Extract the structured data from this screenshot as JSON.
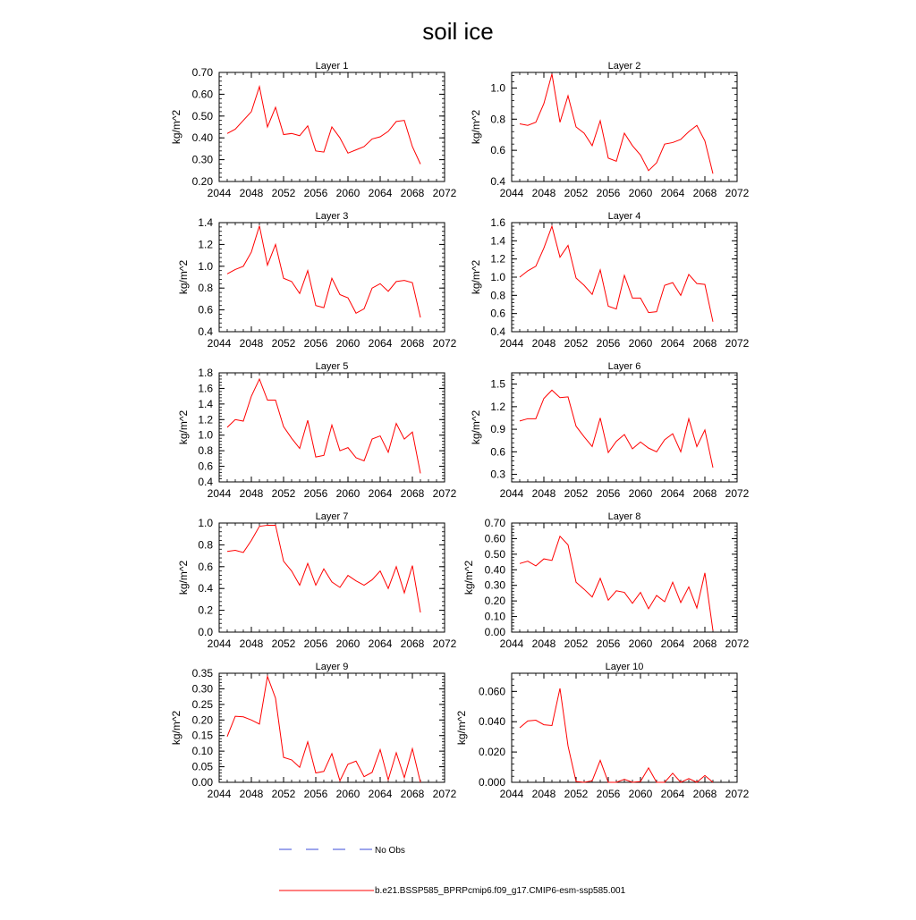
{
  "title": "soil ice",
  "ylabel": "kg/m^2",
  "x_ticks": [
    2044,
    2048,
    2052,
    2056,
    2060,
    2064,
    2068,
    2072
  ],
  "xlim": [
    2044,
    2072
  ],
  "years": [
    2045,
    2046,
    2047,
    2048,
    2049,
    2050,
    2051,
    2052,
    2053,
    2054,
    2055,
    2056,
    2057,
    2058,
    2059,
    2060,
    2061,
    2062,
    2063,
    2064,
    2065,
    2066,
    2067,
    2068,
    2069
  ],
  "legend": [
    {
      "label": "No Obs",
      "color": "#3b4bd8",
      "style": "dashed"
    },
    {
      "label": "b.e21.BSSP585_BPRPcmip6.f09_g17.CMIP6-esm-ssp585.001",
      "color": "#ff0000",
      "style": "solid"
    }
  ],
  "chart_data": [
    {
      "type": "line",
      "title": "Layer 1",
      "ylim": [
        0.2,
        0.7
      ],
      "yticks": [
        0.2,
        0.3,
        0.4,
        0.5,
        0.6,
        0.7
      ],
      "decimals": 2,
      "series": [
        {
          "name": "b.e21.BSSP585_BPRPcmip6.f09_g17.CMIP6-esm-ssp585.001",
          "color": "#ff0000",
          "values": [
            0.42,
            0.44,
            0.48,
            0.52,
            0.635,
            0.45,
            0.54,
            0.415,
            0.42,
            0.41,
            0.455,
            0.34,
            0.335,
            0.45,
            0.4,
            0.33,
            0.345,
            0.36,
            0.395,
            0.405,
            0.43,
            0.475,
            0.48,
            0.36,
            0.28
          ]
        }
      ]
    },
    {
      "type": "line",
      "title": "Layer 2",
      "ylim": [
        0.4,
        1.1
      ],
      "yticks": [
        0.4,
        0.6,
        0.8,
        1.0
      ],
      "decimals": 1,
      "series": [
        {
          "name": "b.e21.BSSP585_BPRPcmip6.f09_g17.CMIP6-esm-ssp585.001",
          "color": "#ff0000",
          "values": [
            0.77,
            0.76,
            0.78,
            0.9,
            1.09,
            0.78,
            0.95,
            0.75,
            0.71,
            0.63,
            0.79,
            0.55,
            0.53,
            0.71,
            0.63,
            0.57,
            0.47,
            0.52,
            0.64,
            0.65,
            0.67,
            0.72,
            0.76,
            0.66,
            0.45
          ]
        }
      ]
    },
    {
      "type": "line",
      "title": "Layer 3",
      "ylim": [
        0.4,
        1.4
      ],
      "yticks": [
        0.4,
        0.6,
        0.8,
        1.0,
        1.2,
        1.4
      ],
      "decimals": 1,
      "series": [
        {
          "name": "b.e21.BSSP585_BPRPcmip6.f09_g17.CMIP6-esm-ssp585.001",
          "color": "#ff0000",
          "values": [
            0.93,
            0.97,
            1.0,
            1.13,
            1.37,
            1.01,
            1.2,
            0.89,
            0.86,
            0.75,
            0.96,
            0.64,
            0.62,
            0.89,
            0.74,
            0.71,
            0.57,
            0.61,
            0.8,
            0.84,
            0.77,
            0.86,
            0.87,
            0.85,
            0.53
          ]
        }
      ]
    },
    {
      "type": "line",
      "title": "Layer 4",
      "ylim": [
        0.4,
        1.6
      ],
      "yticks": [
        0.4,
        0.6,
        0.8,
        1.0,
        1.2,
        1.4,
        1.6
      ],
      "decimals": 1,
      "series": [
        {
          "name": "b.e21.BSSP585_BPRPcmip6.f09_g17.CMIP6-esm-ssp585.001",
          "color": "#ff0000",
          "values": [
            1.0,
            1.07,
            1.12,
            1.32,
            1.56,
            1.22,
            1.35,
            0.99,
            0.91,
            0.81,
            1.08,
            0.68,
            0.65,
            1.02,
            0.77,
            0.77,
            0.61,
            0.62,
            0.91,
            0.94,
            0.8,
            1.03,
            0.93,
            0.92,
            0.51
          ]
        }
      ]
    },
    {
      "type": "line",
      "title": "Layer 5",
      "ylim": [
        0.4,
        1.8
      ],
      "yticks": [
        0.4,
        0.6,
        0.8,
        1.0,
        1.2,
        1.4,
        1.6,
        1.8
      ],
      "decimals": 1,
      "series": [
        {
          "name": "b.e21.BSSP585_BPRPcmip6.f09_g17.CMIP6-esm-ssp585.001",
          "color": "#ff0000",
          "values": [
            1.1,
            1.2,
            1.18,
            1.5,
            1.72,
            1.45,
            1.45,
            1.11,
            0.96,
            0.83,
            1.19,
            0.72,
            0.74,
            1.13,
            0.8,
            0.84,
            0.71,
            0.67,
            0.95,
            0.99,
            0.78,
            1.15,
            0.95,
            1.04,
            0.51
          ]
        }
      ]
    },
    {
      "type": "line",
      "title": "Layer 6",
      "ylim": [
        0.2,
        1.65
      ],
      "yticks": [
        0.3,
        0.6,
        0.9,
        1.2,
        1.5
      ],
      "decimals": 1,
      "series": [
        {
          "name": "b.e21.BSSP585_BPRPcmip6.f09_g17.CMIP6-esm-ssp585.001",
          "color": "#ff0000",
          "values": [
            1.01,
            1.04,
            1.04,
            1.31,
            1.42,
            1.32,
            1.33,
            0.94,
            0.8,
            0.67,
            1.05,
            0.59,
            0.74,
            0.83,
            0.64,
            0.73,
            0.65,
            0.6,
            0.76,
            0.84,
            0.6,
            1.04,
            0.67,
            0.89,
            0.39
          ]
        }
      ]
    },
    {
      "type": "line",
      "title": "Layer 7",
      "ylim": [
        0.0,
        1.0
      ],
      "yticks": [
        0.0,
        0.2,
        0.4,
        0.6,
        0.8,
        1.0
      ],
      "decimals": 1,
      "series": [
        {
          "name": "b.e21.BSSP585_BPRPcmip6.f09_g17.CMIP6-esm-ssp585.001",
          "color": "#ff0000",
          "values": [
            0.74,
            0.75,
            0.73,
            0.84,
            0.97,
            0.98,
            0.98,
            0.65,
            0.56,
            0.43,
            0.63,
            0.43,
            0.58,
            0.46,
            0.41,
            0.52,
            0.47,
            0.43,
            0.48,
            0.56,
            0.4,
            0.6,
            0.36,
            0.61,
            0.18
          ]
        }
      ]
    },
    {
      "type": "line",
      "title": "Layer 8",
      "ylim": [
        0.0,
        0.7
      ],
      "yticks": [
        0.0,
        0.1,
        0.2,
        0.3,
        0.4,
        0.5,
        0.6,
        0.7
      ],
      "decimals": 2,
      "series": [
        {
          "name": "b.e21.BSSP585_BPRPcmip6.f09_g17.CMIP6-esm-ssp585.001",
          "color": "#ff0000",
          "values": [
            0.44,
            0.455,
            0.425,
            0.47,
            0.46,
            0.615,
            0.56,
            0.32,
            0.275,
            0.225,
            0.345,
            0.205,
            0.265,
            0.255,
            0.185,
            0.255,
            0.15,
            0.235,
            0.195,
            0.32,
            0.19,
            0.29,
            0.155,
            0.38,
            0.01
          ]
        }
      ]
    },
    {
      "type": "line",
      "title": "Layer 9",
      "ylim": [
        0.0,
        0.35
      ],
      "yticks": [
        0.0,
        0.05,
        0.1,
        0.15,
        0.2,
        0.25,
        0.3,
        0.35
      ],
      "decimals": 2,
      "series": [
        {
          "name": "b.e21.BSSP585_BPRPcmip6.f09_g17.CMIP6-esm-ssp585.001",
          "color": "#ff0000",
          "values": [
            0.147,
            0.212,
            0.21,
            0.2,
            0.187,
            0.34,
            0.27,
            0.08,
            0.072,
            0.048,
            0.13,
            0.03,
            0.035,
            0.092,
            0.005,
            0.058,
            0.068,
            0.018,
            0.032,
            0.105,
            0.008,
            0.095,
            0.015,
            0.108,
            0.0
          ]
        }
      ]
    },
    {
      "type": "line",
      "title": "Layer 10",
      "ylim": [
        0.0,
        0.072
      ],
      "yticks": [
        0.0,
        0.02,
        0.04,
        0.06
      ],
      "decimals": 3,
      "series": [
        {
          "name": "b.e21.BSSP585_BPRPcmip6.f09_g17.CMIP6-esm-ssp585.001",
          "color": "#ff0000",
          "values": [
            0.036,
            0.0405,
            0.041,
            0.038,
            0.0375,
            0.062,
            0.024,
            0.0005,
            0.0,
            0.001,
            0.0145,
            0.0,
            0.0,
            0.002,
            0.0,
            0.0005,
            0.0095,
            0.0,
            0.0,
            0.006,
            0.0,
            0.0025,
            0.0,
            0.0045,
            0.0
          ]
        }
      ]
    }
  ]
}
